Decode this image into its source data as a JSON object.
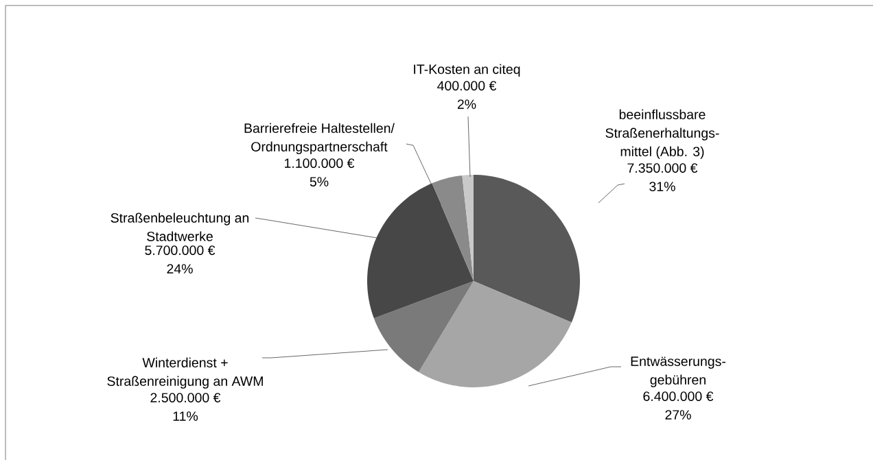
{
  "chart_data": {
    "type": "pie",
    "categories": [
      "beeinflussbare Straßenerhaltungs-mittel (Abb. 3)",
      "Entwässerungs-gebühren",
      "Winterdienst + Straßenreinigung an AWM",
      "Straßenbeleuchtung an Stadtwerke",
      "Barrierefreie Haltestellen/ Ordnungspartnerschaft",
      "IT-Kosten an citeq"
    ],
    "values": [
      7350000,
      6400000,
      2500000,
      5700000,
      1100000,
      400000
    ],
    "value_labels": [
      "7.350.000 € 31%",
      "6.400.000 € 27%",
      "2.500.000 € 11%",
      "5.700.000 € 24%",
      "1.100.000 € 5%",
      "400.000 € 2%"
    ],
    "colors": [
      "#595959",
      "#a6a6a6",
      "#7a7a7a",
      "#474747",
      "#8a8a8a",
      "#c9c9c9"
    ]
  }
}
